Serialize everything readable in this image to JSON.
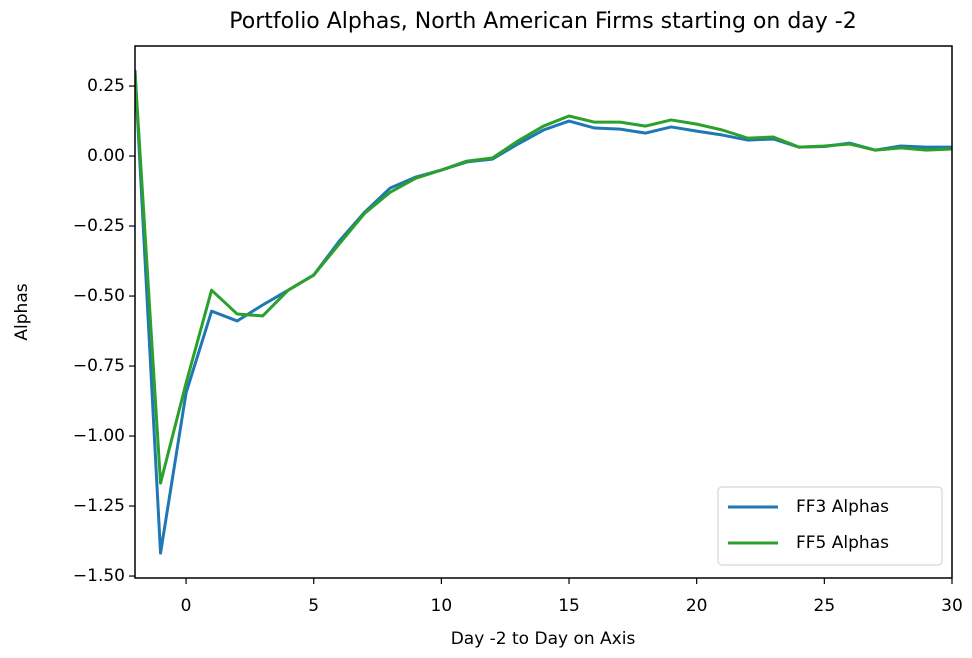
{
  "chart_data": {
    "type": "line",
    "title": "Portfolio Alphas, North American Firms starting on day -2",
    "x_label": "Day -2 to Day on Axis",
    "y_label": "Alphas",
    "x": [
      -2,
      -1,
      0,
      1,
      2,
      3,
      4,
      5,
      6,
      7,
      8,
      9,
      10,
      11,
      12,
      13,
      14,
      15,
      16,
      17,
      18,
      19,
      20,
      21,
      22,
      23,
      24,
      25,
      26,
      27,
      28,
      29,
      30
    ],
    "series": [
      {
        "name": "FF3 Alphas",
        "color": "#1f77b4",
        "values": [
          0.307,
          -1.418,
          -0.846,
          -0.554,
          -0.589,
          -0.532,
          -0.479,
          -0.425,
          -0.304,
          -0.2,
          -0.114,
          -0.075,
          -0.05,
          -0.021,
          -0.011,
          0.043,
          0.093,
          0.125,
          0.1,
          0.096,
          0.082,
          0.104,
          0.089,
          0.075,
          0.057,
          0.061,
          0.032,
          0.034,
          0.046,
          0.021,
          0.036,
          0.032,
          0.032
        ]
      },
      {
        "name": "FF5 Alphas",
        "color": "#2ca02c",
        "values": [
          0.3,
          -1.168,
          -0.811,
          -0.479,
          -0.564,
          -0.571,
          -0.479,
          -0.425,
          -0.314,
          -0.204,
          -0.129,
          -0.079,
          -0.05,
          -0.018,
          -0.007,
          0.054,
          0.107,
          0.143,
          0.121,
          0.121,
          0.107,
          0.129,
          0.114,
          0.093,
          0.064,
          0.068,
          0.032,
          0.036,
          0.043,
          0.021,
          0.029,
          0.021,
          0.025
        ]
      }
    ],
    "xlim": [
      -2,
      30
    ],
    "xticks": [
      0,
      5,
      10,
      15,
      20,
      25,
      30
    ],
    "ylim": [
      -1.507,
      0.393
    ],
    "yticks": [
      {
        "value": 0.25,
        "label": "0.25"
      },
      {
        "value": 0,
        "label": "0.00"
      },
      {
        "value": -0.25,
        "label": "−0.25"
      },
      {
        "value": -0.5,
        "label": "−0.50"
      },
      {
        "value": -0.75,
        "label": "−0.75"
      },
      {
        "value": -1,
        "label": "−1.00"
      },
      {
        "value": -1.25,
        "label": "−1.25"
      },
      {
        "value": -1.5,
        "label": "−1.50"
      }
    ],
    "legend": "lower right",
    "grid": false
  }
}
